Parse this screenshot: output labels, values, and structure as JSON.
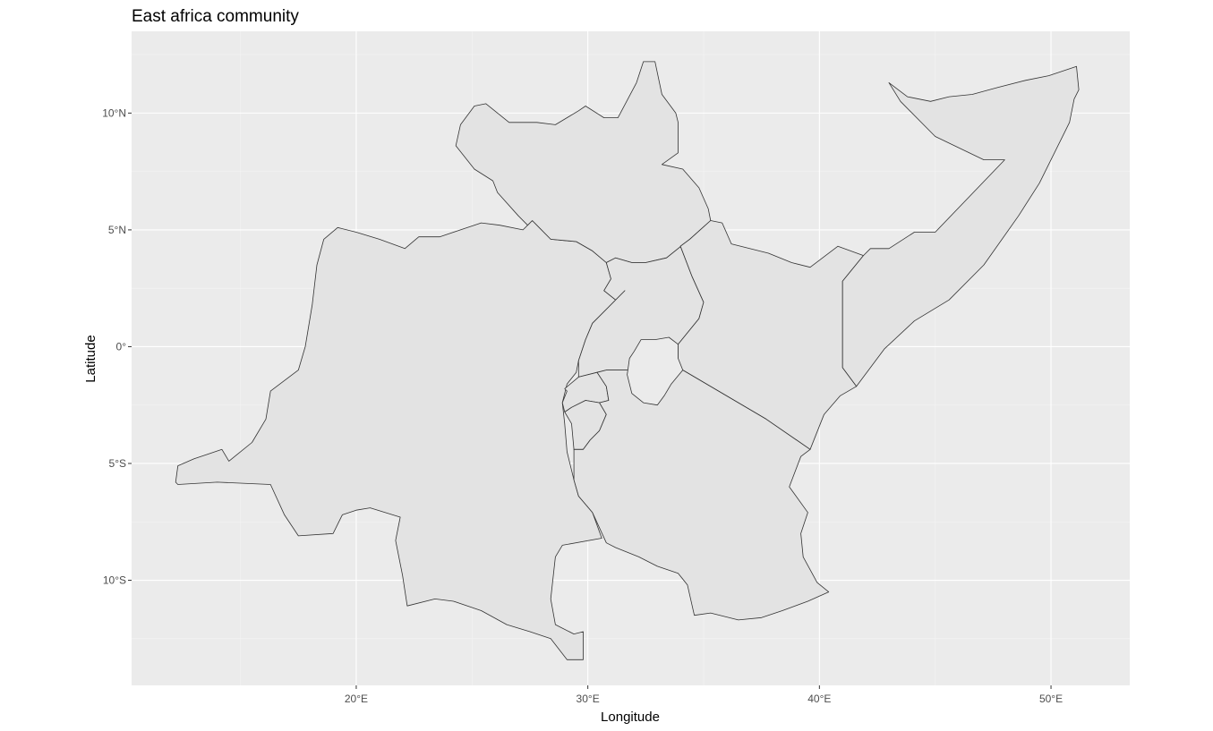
{
  "title": "East africa community",
  "xlabel": "Longitude",
  "ylabel": "Latitude",
  "x_ticks": [
    {
      "value": 20,
      "label": "20°E"
    },
    {
      "value": 30,
      "label": "30°E"
    },
    {
      "value": 40,
      "label": "40°E"
    },
    {
      "value": 50,
      "label": "50°E"
    }
  ],
  "y_ticks": [
    {
      "value": 10,
      "label": "10°N"
    },
    {
      "value": 5,
      "label": "5°N"
    },
    {
      "value": 0,
      "label": "0°"
    },
    {
      "value": -5,
      "label": "5°S"
    },
    {
      "value": -10,
      "label": "10°S"
    }
  ],
  "colors": {
    "panel": "#ebebeb",
    "land_fill": "#e3e3e3",
    "border": "#333333"
  },
  "map_data": {
    "xlim": [
      10.3,
      53.4
    ],
    "ylim": [
      -14.5,
      13.5
    ],
    "countries": [
      {
        "id": "dr-congo",
        "coords": [
          [
            12.2,
            -5.8
          ],
          [
            12.3,
            -5.1
          ],
          [
            13.0,
            -4.8
          ],
          [
            14.2,
            -4.4
          ],
          [
            14.5,
            -4.9
          ],
          [
            15.5,
            -4.1
          ],
          [
            16.1,
            -3.1
          ],
          [
            16.3,
            -1.9
          ],
          [
            17.5,
            -1.0
          ],
          [
            17.8,
            0.0
          ],
          [
            18.1,
            1.8
          ],
          [
            18.3,
            3.5
          ],
          [
            18.6,
            4.6
          ],
          [
            19.2,
            5.1
          ],
          [
            20.0,
            4.9
          ],
          [
            21.0,
            4.6
          ],
          [
            22.1,
            4.2
          ],
          [
            22.7,
            4.7
          ],
          [
            23.6,
            4.7
          ],
          [
            24.5,
            5.0
          ],
          [
            25.4,
            5.3
          ],
          [
            26.2,
            5.2
          ],
          [
            27.2,
            5.0
          ],
          [
            27.6,
            5.4
          ],
          [
            28.4,
            4.6
          ],
          [
            29.5,
            4.5
          ],
          [
            30.2,
            4.1
          ],
          [
            30.8,
            3.6
          ],
          [
            31.0,
            2.9
          ],
          [
            30.7,
            2.4
          ],
          [
            31.2,
            2.0
          ],
          [
            31.6,
            2.4
          ],
          [
            30.9,
            1.7
          ],
          [
            30.2,
            1.0
          ],
          [
            29.9,
            0.3
          ],
          [
            29.6,
            -0.6
          ],
          [
            29.5,
            -1.1
          ],
          [
            29.1,
            -1.6
          ],
          [
            28.9,
            -2.4
          ],
          [
            29.0,
            -3.3
          ],
          [
            29.1,
            -4.5
          ],
          [
            29.4,
            -5.7
          ],
          [
            29.6,
            -6.4
          ],
          [
            30.2,
            -7.1
          ],
          [
            30.6,
            -8.2
          ],
          [
            28.9,
            -8.5
          ],
          [
            28.6,
            -9.0
          ],
          [
            28.4,
            -10.8
          ],
          [
            28.6,
            -11.9
          ],
          [
            29.4,
            -12.3
          ],
          [
            29.8,
            -12.2
          ],
          [
            29.8,
            -13.4
          ],
          [
            29.1,
            -13.4
          ],
          [
            28.4,
            -12.5
          ],
          [
            27.5,
            -12.2
          ],
          [
            26.5,
            -11.9
          ],
          [
            25.4,
            -11.3
          ],
          [
            24.2,
            -10.9
          ],
          [
            23.4,
            -10.8
          ],
          [
            22.2,
            -11.1
          ],
          [
            22.0,
            -9.8
          ],
          [
            21.7,
            -8.3
          ],
          [
            21.9,
            -7.3
          ],
          [
            20.6,
            -6.9
          ],
          [
            20.0,
            -7.0
          ],
          [
            19.4,
            -7.2
          ],
          [
            19.0,
            -8.0
          ],
          [
            17.5,
            -8.1
          ],
          [
            16.9,
            -7.2
          ],
          [
            16.3,
            -5.9
          ],
          [
            14.0,
            -5.8
          ],
          [
            12.3,
            -5.9
          ],
          [
            12.2,
            -5.8
          ]
        ]
      },
      {
        "id": "south-sudan",
        "coords": [
          [
            27.4,
            5.2
          ],
          [
            27.0,
            5.6
          ],
          [
            26.1,
            6.6
          ],
          [
            25.9,
            7.1
          ],
          [
            25.1,
            7.6
          ],
          [
            24.3,
            8.6
          ],
          [
            24.5,
            9.5
          ],
          [
            25.1,
            10.3
          ],
          [
            25.6,
            10.4
          ],
          [
            26.6,
            9.6
          ],
          [
            27.8,
            9.6
          ],
          [
            28.6,
            9.5
          ],
          [
            29.6,
            10.1
          ],
          [
            29.9,
            10.3
          ],
          [
            30.7,
            9.8
          ],
          [
            31.3,
            9.8
          ],
          [
            32.1,
            11.3
          ],
          [
            32.4,
            12.2
          ],
          [
            32.9,
            12.2
          ],
          [
            33.2,
            10.8
          ],
          [
            33.8,
            10.0
          ],
          [
            33.9,
            9.6
          ],
          [
            33.9,
            8.3
          ],
          [
            33.2,
            7.8
          ],
          [
            34.1,
            7.6
          ],
          [
            34.8,
            6.8
          ],
          [
            35.2,
            5.9
          ],
          [
            35.3,
            5.4
          ],
          [
            34.4,
            4.6
          ],
          [
            33.4,
            3.8
          ],
          [
            32.5,
            3.6
          ],
          [
            31.9,
            3.6
          ],
          [
            31.2,
            3.8
          ],
          [
            30.8,
            3.6
          ],
          [
            30.2,
            4.1
          ],
          [
            29.5,
            4.5
          ],
          [
            28.4,
            4.6
          ],
          [
            27.6,
            5.4
          ],
          [
            27.4,
            5.2
          ]
        ]
      },
      {
        "id": "uganda",
        "coords": [
          [
            31.2,
            3.8
          ],
          [
            31.9,
            3.6
          ],
          [
            32.5,
            3.6
          ],
          [
            33.4,
            3.8
          ],
          [
            34.4,
            4.6
          ],
          [
            34.0,
            4.3
          ],
          [
            34.5,
            3.0
          ],
          [
            35.0,
            1.9
          ],
          [
            34.8,
            1.2
          ],
          [
            33.9,
            0.1
          ],
          [
            33.9,
            -1.0
          ],
          [
            31.9,
            -1.0
          ],
          [
            30.8,
            -1.0
          ],
          [
            29.6,
            -1.3
          ],
          [
            29.6,
            -0.6
          ],
          [
            29.9,
            0.3
          ],
          [
            30.2,
            1.0
          ],
          [
            30.9,
            1.7
          ],
          [
            31.6,
            2.4
          ],
          [
            31.2,
            2.0
          ],
          [
            30.7,
            2.4
          ],
          [
            31.0,
            2.9
          ],
          [
            30.8,
            3.6
          ],
          [
            31.2,
            3.8
          ]
        ]
      },
      {
        "id": "kenya",
        "coords": [
          [
            34.4,
            4.6
          ],
          [
            35.3,
            5.4
          ],
          [
            35.8,
            5.3
          ],
          [
            36.2,
            4.4
          ],
          [
            37.8,
            4.0
          ],
          [
            38.8,
            3.6
          ],
          [
            39.6,
            3.4
          ],
          [
            40.8,
            4.3
          ],
          [
            41.9,
            3.9
          ],
          [
            41.0,
            2.8
          ],
          [
            41.0,
            -0.9
          ],
          [
            41.6,
            -1.7
          ],
          [
            40.9,
            -2.1
          ],
          [
            40.2,
            -2.9
          ],
          [
            39.6,
            -4.4
          ],
          [
            37.7,
            -3.1
          ],
          [
            34.1,
            -1.0
          ],
          [
            33.9,
            -1.0
          ],
          [
            33.9,
            0.1
          ],
          [
            34.8,
            1.2
          ],
          [
            35.0,
            1.9
          ],
          [
            34.5,
            3.0
          ],
          [
            34.0,
            4.3
          ],
          [
            34.4,
            4.6
          ]
        ]
      },
      {
        "id": "somalia",
        "coords": [
          [
            41.0,
            2.8
          ],
          [
            41.9,
            3.9
          ],
          [
            42.2,
            4.2
          ],
          [
            43.0,
            4.2
          ],
          [
            44.1,
            4.9
          ],
          [
            45.0,
            4.9
          ],
          [
            48.0,
            8.0
          ],
          [
            47.1,
            8.0
          ],
          [
            45.0,
            9.0
          ],
          [
            43.5,
            10.5
          ],
          [
            43.0,
            11.3
          ],
          [
            43.8,
            10.7
          ],
          [
            44.8,
            10.5
          ],
          [
            45.6,
            10.7
          ],
          [
            46.6,
            10.8
          ],
          [
            47.7,
            11.1
          ],
          [
            48.9,
            11.4
          ],
          [
            49.9,
            11.6
          ],
          [
            51.1,
            12.0
          ],
          [
            51.2,
            11.0
          ],
          [
            51.0,
            10.6
          ],
          [
            50.8,
            9.6
          ],
          [
            49.5,
            7.0
          ],
          [
            48.6,
            5.6
          ],
          [
            47.1,
            3.5
          ],
          [
            45.6,
            2.0
          ],
          [
            44.1,
            1.1
          ],
          [
            42.8,
            -0.1
          ],
          [
            41.6,
            -1.7
          ],
          [
            41.0,
            -0.9
          ],
          [
            41.0,
            2.8
          ]
        ]
      },
      {
        "id": "rwanda",
        "coords": [
          [
            29.0,
            -1.8
          ],
          [
            29.6,
            -1.3
          ],
          [
            30.4,
            -1.1
          ],
          [
            30.8,
            -1.7
          ],
          [
            30.9,
            -2.3
          ],
          [
            30.5,
            -2.4
          ],
          [
            29.9,
            -2.3
          ],
          [
            29.3,
            -2.6
          ],
          [
            29.0,
            -2.8
          ],
          [
            28.9,
            -2.4
          ],
          [
            29.1,
            -1.9
          ],
          [
            29.0,
            -1.8
          ]
        ]
      },
      {
        "id": "burundi",
        "coords": [
          [
            29.3,
            -2.6
          ],
          [
            29.9,
            -2.3
          ],
          [
            30.5,
            -2.4
          ],
          [
            30.8,
            -2.9
          ],
          [
            30.5,
            -3.6
          ],
          [
            30.1,
            -4.0
          ],
          [
            29.8,
            -4.4
          ],
          [
            29.4,
            -4.4
          ],
          [
            29.3,
            -3.3
          ],
          [
            29.0,
            -2.8
          ],
          [
            29.3,
            -2.6
          ]
        ]
      },
      {
        "id": "tanzania",
        "coords": [
          [
            33.9,
            -1.0
          ],
          [
            34.1,
            -1.0
          ],
          [
            37.7,
            -3.1
          ],
          [
            39.6,
            -4.4
          ],
          [
            39.2,
            -4.7
          ],
          [
            38.7,
            -6.0
          ],
          [
            39.5,
            -7.1
          ],
          [
            39.2,
            -8.0
          ],
          [
            39.3,
            -9.0
          ],
          [
            39.9,
            -10.1
          ],
          [
            40.4,
            -10.5
          ],
          [
            39.5,
            -10.9
          ],
          [
            38.4,
            -11.3
          ],
          [
            37.5,
            -11.6
          ],
          [
            36.5,
            -11.7
          ],
          [
            35.3,
            -11.4
          ],
          [
            34.6,
            -11.5
          ],
          [
            34.3,
            -10.2
          ],
          [
            33.9,
            -9.7
          ],
          [
            33.0,
            -9.4
          ],
          [
            32.2,
            -9.0
          ],
          [
            31.2,
            -8.6
          ],
          [
            30.8,
            -8.4
          ],
          [
            30.2,
            -7.1
          ],
          [
            29.6,
            -6.4
          ],
          [
            29.4,
            -5.7
          ],
          [
            29.4,
            -4.4
          ],
          [
            29.8,
            -4.4
          ],
          [
            30.1,
            -4.0
          ],
          [
            30.5,
            -3.6
          ],
          [
            30.8,
            -2.9
          ],
          [
            30.5,
            -2.4
          ],
          [
            30.9,
            -2.3
          ],
          [
            30.8,
            -1.7
          ],
          [
            30.4,
            -1.1
          ],
          [
            30.8,
            -1.0
          ],
          [
            31.9,
            -1.0
          ],
          [
            33.9,
            -1.0
          ]
        ]
      }
    ],
    "lakes": [
      {
        "id": "lake-victoria",
        "coords": [
          [
            32.0,
            -0.2
          ],
          [
            32.3,
            0.3
          ],
          [
            32.9,
            0.3
          ],
          [
            33.5,
            0.4
          ],
          [
            33.9,
            0.1
          ],
          [
            33.9,
            -0.5
          ],
          [
            34.1,
            -1.0
          ],
          [
            33.6,
            -1.6
          ],
          [
            33.3,
            -2.1
          ],
          [
            33.0,
            -2.5
          ],
          [
            32.4,
            -2.4
          ],
          [
            31.9,
            -2.0
          ],
          [
            31.7,
            -1.2
          ],
          [
            31.8,
            -0.5
          ],
          [
            32.0,
            -0.2
          ]
        ]
      }
    ]
  }
}
